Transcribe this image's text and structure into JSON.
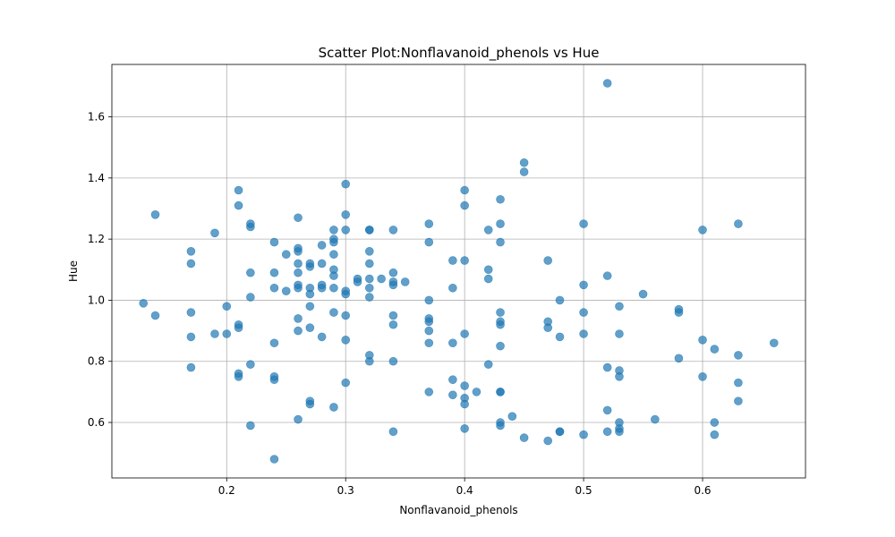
{
  "chart_data": {
    "type": "scatter",
    "title": "Scatter Plot:Nonflavanoid_phenols vs Hue",
    "xlabel": "Nonflavanoid_phenols",
    "ylabel": "Hue",
    "xlim": [
      0.1035,
      0.6865
    ],
    "ylim": [
      0.4185,
      1.7715
    ],
    "xticks": [
      0.2,
      0.3,
      0.4,
      0.5,
      0.6
    ],
    "xtick_labels": [
      "0.2",
      "0.3",
      "0.4",
      "0.5",
      "0.6"
    ],
    "yticks": [
      0.6,
      0.8,
      1.0,
      1.2,
      1.4,
      1.6
    ],
    "ytick_labels": [
      "0.6",
      "0.8",
      "1.0",
      "1.2",
      "1.4",
      "1.6"
    ],
    "grid": true,
    "marker_color": "#1f77b4",
    "marker_alpha": 0.7,
    "points": [
      [
        0.13,
        0.99
      ],
      [
        0.14,
        1.28
      ],
      [
        0.14,
        0.95
      ],
      [
        0.17,
        1.16
      ],
      [
        0.17,
        1.12
      ],
      [
        0.17,
        0.96
      ],
      [
        0.17,
        0.88
      ],
      [
        0.17,
        0.78
      ],
      [
        0.19,
        1.22
      ],
      [
        0.19,
        0.89
      ],
      [
        0.2,
        0.98
      ],
      [
        0.2,
        0.89
      ],
      [
        0.21,
        1.36
      ],
      [
        0.21,
        1.31
      ],
      [
        0.21,
        0.92
      ],
      [
        0.21,
        0.91
      ],
      [
        0.21,
        0.76
      ],
      [
        0.21,
        0.75
      ],
      [
        0.22,
        1.25
      ],
      [
        0.22,
        1.24
      ],
      [
        0.22,
        1.09
      ],
      [
        0.22,
        1.01
      ],
      [
        0.22,
        0.79
      ],
      [
        0.22,
        0.59
      ],
      [
        0.24,
        1.19
      ],
      [
        0.24,
        1.09
      ],
      [
        0.24,
        1.04
      ],
      [
        0.24,
        0.86
      ],
      [
        0.24,
        0.75
      ],
      [
        0.24,
        0.74
      ],
      [
        0.24,
        0.48
      ],
      [
        0.25,
        1.15
      ],
      [
        0.25,
        1.03
      ],
      [
        0.26,
        1.27
      ],
      [
        0.26,
        1.17
      ],
      [
        0.26,
        1.16
      ],
      [
        0.26,
        1.12
      ],
      [
        0.26,
        1.09
      ],
      [
        0.26,
        1.05
      ],
      [
        0.26,
        1.04
      ],
      [
        0.26,
        0.94
      ],
      [
        0.26,
        0.9
      ],
      [
        0.26,
        0.61
      ],
      [
        0.27,
        1.12
      ],
      [
        0.27,
        1.11
      ],
      [
        0.27,
        1.04
      ],
      [
        0.27,
        1.02
      ],
      [
        0.27,
        0.98
      ],
      [
        0.27,
        0.91
      ],
      [
        0.27,
        0.67
      ],
      [
        0.27,
        0.66
      ],
      [
        0.28,
        1.18
      ],
      [
        0.28,
        1.12
      ],
      [
        0.28,
        1.05
      ],
      [
        0.28,
        1.04
      ],
      [
        0.28,
        0.88
      ],
      [
        0.29,
        1.23
      ],
      [
        0.29,
        1.2
      ],
      [
        0.29,
        1.19
      ],
      [
        0.29,
        1.15
      ],
      [
        0.29,
        1.1
      ],
      [
        0.29,
        1.08
      ],
      [
        0.29,
        1.04
      ],
      [
        0.29,
        0.96
      ],
      [
        0.29,
        0.65
      ],
      [
        0.3,
        1.38
      ],
      [
        0.3,
        1.28
      ],
      [
        0.3,
        1.23
      ],
      [
        0.3,
        1.03
      ],
      [
        0.3,
        1.02
      ],
      [
        0.3,
        0.95
      ],
      [
        0.3,
        0.87
      ],
      [
        0.3,
        0.73
      ],
      [
        0.31,
        1.07
      ],
      [
        0.31,
        1.06
      ],
      [
        0.32,
        1.23
      ],
      [
        0.32,
        1.23
      ],
      [
        0.32,
        1.16
      ],
      [
        0.32,
        1.12
      ],
      [
        0.32,
        1.07
      ],
      [
        0.32,
        1.04
      ],
      [
        0.32,
        1.01
      ],
      [
        0.32,
        0.82
      ],
      [
        0.32,
        0.8
      ],
      [
        0.33,
        1.07
      ],
      [
        0.34,
        1.23
      ],
      [
        0.34,
        1.09
      ],
      [
        0.34,
        1.06
      ],
      [
        0.34,
        1.05
      ],
      [
        0.34,
        0.95
      ],
      [
        0.34,
        0.92
      ],
      [
        0.34,
        0.8
      ],
      [
        0.34,
        0.57
      ],
      [
        0.35,
        1.06
      ],
      [
        0.37,
        1.25
      ],
      [
        0.37,
        1.19
      ],
      [
        0.37,
        1.0
      ],
      [
        0.37,
        0.94
      ],
      [
        0.37,
        0.93
      ],
      [
        0.37,
        0.9
      ],
      [
        0.37,
        0.86
      ],
      [
        0.37,
        0.7
      ],
      [
        0.39,
        1.13
      ],
      [
        0.39,
        1.04
      ],
      [
        0.39,
        0.86
      ],
      [
        0.39,
        0.74
      ],
      [
        0.39,
        0.69
      ],
      [
        0.4,
        1.36
      ],
      [
        0.4,
        1.31
      ],
      [
        0.4,
        1.13
      ],
      [
        0.4,
        0.89
      ],
      [
        0.4,
        0.72
      ],
      [
        0.4,
        0.68
      ],
      [
        0.4,
        0.66
      ],
      [
        0.4,
        0.58
      ],
      [
        0.41,
        0.7
      ],
      [
        0.42,
        1.23
      ],
      [
        0.42,
        1.1
      ],
      [
        0.42,
        1.07
      ],
      [
        0.42,
        0.79
      ],
      [
        0.43,
        1.33
      ],
      [
        0.43,
        1.25
      ],
      [
        0.43,
        1.19
      ],
      [
        0.43,
        0.96
      ],
      [
        0.43,
        0.93
      ],
      [
        0.43,
        0.92
      ],
      [
        0.43,
        0.85
      ],
      [
        0.43,
        0.7
      ],
      [
        0.43,
        0.7
      ],
      [
        0.43,
        0.6
      ],
      [
        0.43,
        0.59
      ],
      [
        0.44,
        0.62
      ],
      [
        0.45,
        1.45
      ],
      [
        0.45,
        1.42
      ],
      [
        0.45,
        0.55
      ],
      [
        0.47,
        1.13
      ],
      [
        0.47,
        0.93
      ],
      [
        0.47,
        0.91
      ],
      [
        0.47,
        0.54
      ],
      [
        0.48,
        1.0
      ],
      [
        0.48,
        0.88
      ],
      [
        0.48,
        0.57
      ],
      [
        0.48,
        0.57
      ],
      [
        0.5,
        1.25
      ],
      [
        0.5,
        1.05
      ],
      [
        0.5,
        0.96
      ],
      [
        0.5,
        0.89
      ],
      [
        0.5,
        0.56
      ],
      [
        0.52,
        1.71
      ],
      [
        0.52,
        1.08
      ],
      [
        0.52,
        0.78
      ],
      [
        0.52,
        0.64
      ],
      [
        0.52,
        0.57
      ],
      [
        0.53,
        0.98
      ],
      [
        0.53,
        0.89
      ],
      [
        0.53,
        0.77
      ],
      [
        0.53,
        0.75
      ],
      [
        0.53,
        0.6
      ],
      [
        0.53,
        0.58
      ],
      [
        0.53,
        0.57
      ],
      [
        0.55,
        1.02
      ],
      [
        0.56,
        0.61
      ],
      [
        0.58,
        0.97
      ],
      [
        0.58,
        0.96
      ],
      [
        0.58,
        0.81
      ],
      [
        0.6,
        1.23
      ],
      [
        0.6,
        0.87
      ],
      [
        0.6,
        0.75
      ],
      [
        0.61,
        0.84
      ],
      [
        0.61,
        0.6
      ],
      [
        0.61,
        0.56
      ],
      [
        0.63,
        1.25
      ],
      [
        0.63,
        0.82
      ],
      [
        0.63,
        0.73
      ],
      [
        0.63,
        0.67
      ],
      [
        0.66,
        0.86
      ]
    ]
  }
}
